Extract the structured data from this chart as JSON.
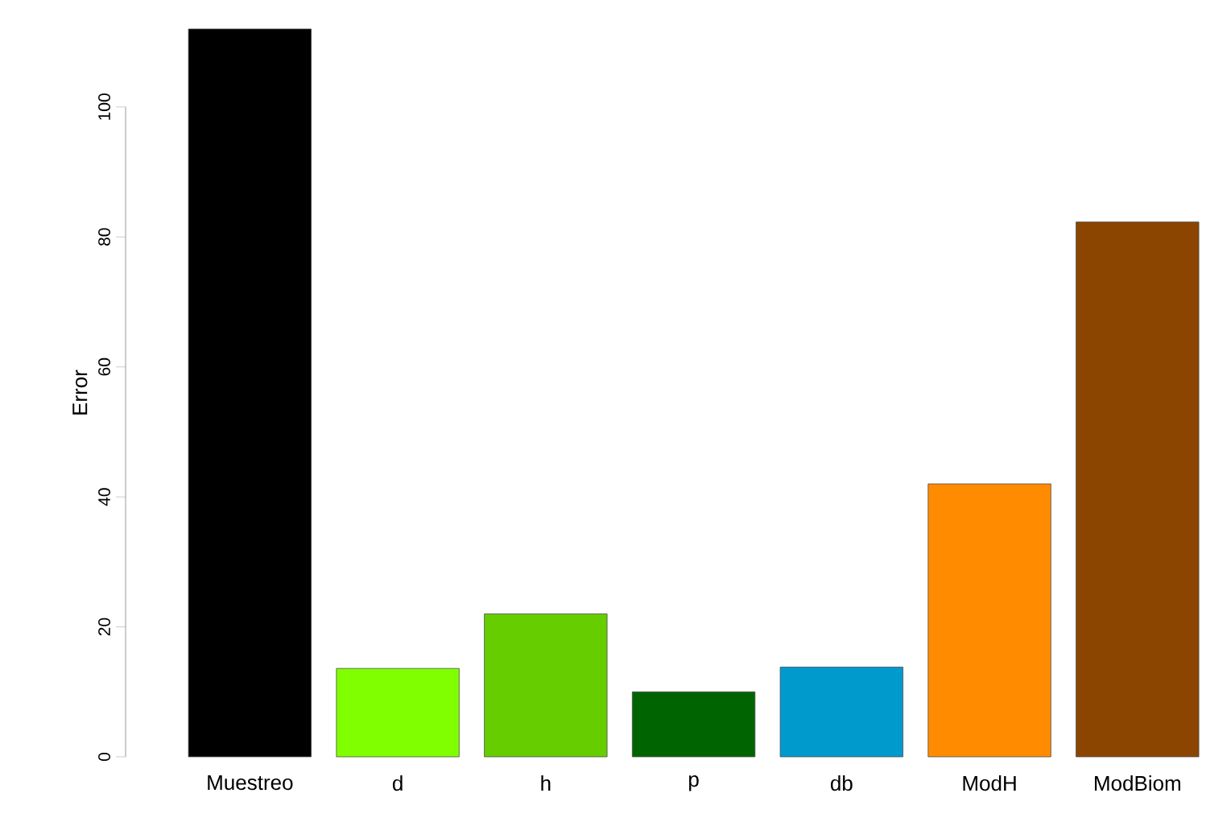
{
  "chart_data": {
    "type": "bar",
    "ylabel": "Error",
    "categories": [
      "Muestreo",
      "d",
      "h",
      "p",
      "db",
      "ModH",
      "ModBiom"
    ],
    "values": [
      112,
      13.6,
      22,
      10,
      13.8,
      42,
      82.3
    ],
    "colors": [
      "#000000",
      "#7fff00",
      "#66cd00",
      "#006400",
      "#009acd",
      "#ff8c00",
      "#8b4500"
    ],
    "ylim": [
      0,
      112
    ],
    "yticks": [
      0,
      20,
      40,
      60,
      80,
      100
    ]
  }
}
